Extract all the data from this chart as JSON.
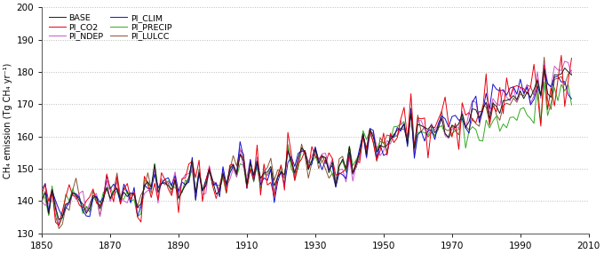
{
  "title": "",
  "ylabel": "CH₄ emission (Tg CH₄ yr⁻¹)",
  "xlabel": "",
  "xlim": [
    1850,
    2010
  ],
  "ylim": [
    130,
    200
  ],
  "yticks": [
    130,
    140,
    150,
    160,
    170,
    180,
    190,
    200
  ],
  "xticks": [
    1850,
    1870,
    1890,
    1910,
    1930,
    1950,
    1970,
    1990,
    2010
  ],
  "series_colors": {
    "BASE": "#1a1a1a",
    "PI_CO2": "#e8000e",
    "PI_NDEP": "#cc55cc",
    "PI_CLIM": "#1111cc",
    "PI_PRECIP": "#33aa22",
    "PI_LULCC": "#885533"
  },
  "series_linewidth": 0.7,
  "grid_color": "#bbbbbb",
  "grid_style": "dotted",
  "background_color": "#ffffff",
  "figsize": [
    6.8,
    2.86
  ],
  "dpi": 100
}
